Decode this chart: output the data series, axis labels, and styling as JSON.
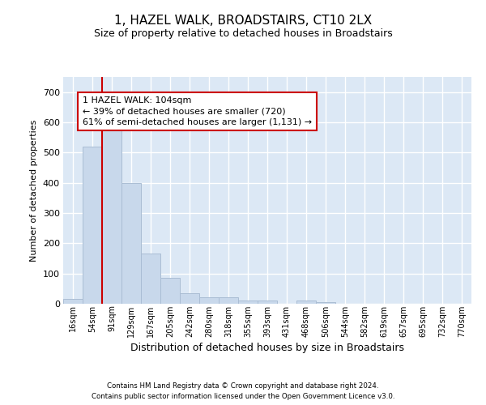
{
  "title": "1, HAZEL WALK, BROADSTAIRS, CT10 2LX",
  "subtitle": "Size of property relative to detached houses in Broadstairs",
  "xlabel": "Distribution of detached houses by size in Broadstairs",
  "ylabel": "Number of detached properties",
  "bar_color": "#c8d8eb",
  "bar_edge_color": "#aabdd4",
  "bin_labels": [
    "16sqm",
    "54sqm",
    "91sqm",
    "129sqm",
    "167sqm",
    "205sqm",
    "242sqm",
    "280sqm",
    "318sqm",
    "355sqm",
    "393sqm",
    "431sqm",
    "468sqm",
    "506sqm",
    "544sqm",
    "582sqm",
    "619sqm",
    "657sqm",
    "695sqm",
    "732sqm",
    "770sqm"
  ],
  "bar_values": [
    15,
    520,
    580,
    400,
    165,
    87,
    35,
    22,
    22,
    10,
    12,
    0,
    12,
    5,
    0,
    0,
    0,
    0,
    0,
    0,
    0
  ],
  "ylim_max": 750,
  "yticks": [
    0,
    100,
    200,
    300,
    400,
    500,
    600,
    700
  ],
  "property_line_bin_index": 2,
  "annotation_text": "1 HAZEL WALK: 104sqm\n← 39% of detached houses are smaller (720)\n61% of semi-detached houses are larger (1,131) →",
  "line_color": "#cc0000",
  "ann_box_edge": "#cc0000",
  "footer1": "Contains HM Land Registry data © Crown copyright and database right 2024.",
  "footer2": "Contains public sector information licensed under the Open Government Licence v3.0.",
  "plot_bg_color": "#dce8f5",
  "grid_color": "#ffffff",
  "fig_bg": "#ffffff"
}
